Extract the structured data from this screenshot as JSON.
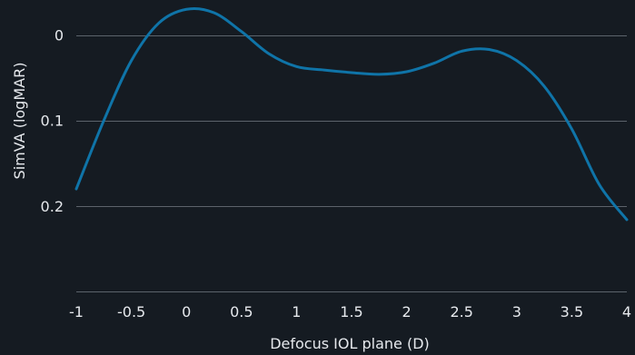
{
  "chart_data": {
    "type": "line",
    "title": "",
    "xlabel": "Defocus IOL plane (D)",
    "ylabel": "SimVA (logMAR)",
    "xlim": [
      -1,
      4
    ],
    "ylim": [
      -0.03,
      0.3
    ],
    "y_inverted": true,
    "grid": "horizontal",
    "x_ticks": [
      {
        "value": -1,
        "label": "-1"
      },
      {
        "value": -0.5,
        "label": "-0.5"
      },
      {
        "value": 0,
        "label": "0"
      },
      {
        "value": 0.5,
        "label": "0.5"
      },
      {
        "value": 1,
        "label": "1"
      },
      {
        "value": 1.5,
        "label": "1.5"
      },
      {
        "value": 2,
        "label": "2"
      },
      {
        "value": 2.5,
        "label": "2.5"
      },
      {
        "value": 3,
        "label": "3"
      },
      {
        "value": 3.5,
        "label": "3.5"
      },
      {
        "value": 4,
        "label": "4"
      }
    ],
    "y_ticks": [
      {
        "value": 0,
        "label": "0"
      },
      {
        "value": 0.1,
        "label": "0.1"
      },
      {
        "value": 0.2,
        "label": "0.2"
      }
    ],
    "y_gridlines": [
      0,
      0.1,
      0.2,
      0.3
    ],
    "series": [
      {
        "color": "#0f74a8",
        "x": [
          -1,
          -0.75,
          -0.5,
          -0.25,
          0,
          0.25,
          0.5,
          0.75,
          1,
          1.25,
          1.5,
          1.75,
          2,
          2.25,
          2.5,
          2.75,
          3,
          3.25,
          3.5,
          3.75,
          4
        ],
        "y": [
          0.18,
          0.1,
          0.03,
          -0.014,
          -0.03,
          -0.026,
          -0.004,
          0.022,
          0.037,
          0.041,
          0.044,
          0.046,
          0.043,
          0.033,
          0.019,
          0.017,
          0.03,
          0.06,
          0.11,
          0.175,
          0.216
        ]
      }
    ]
  }
}
